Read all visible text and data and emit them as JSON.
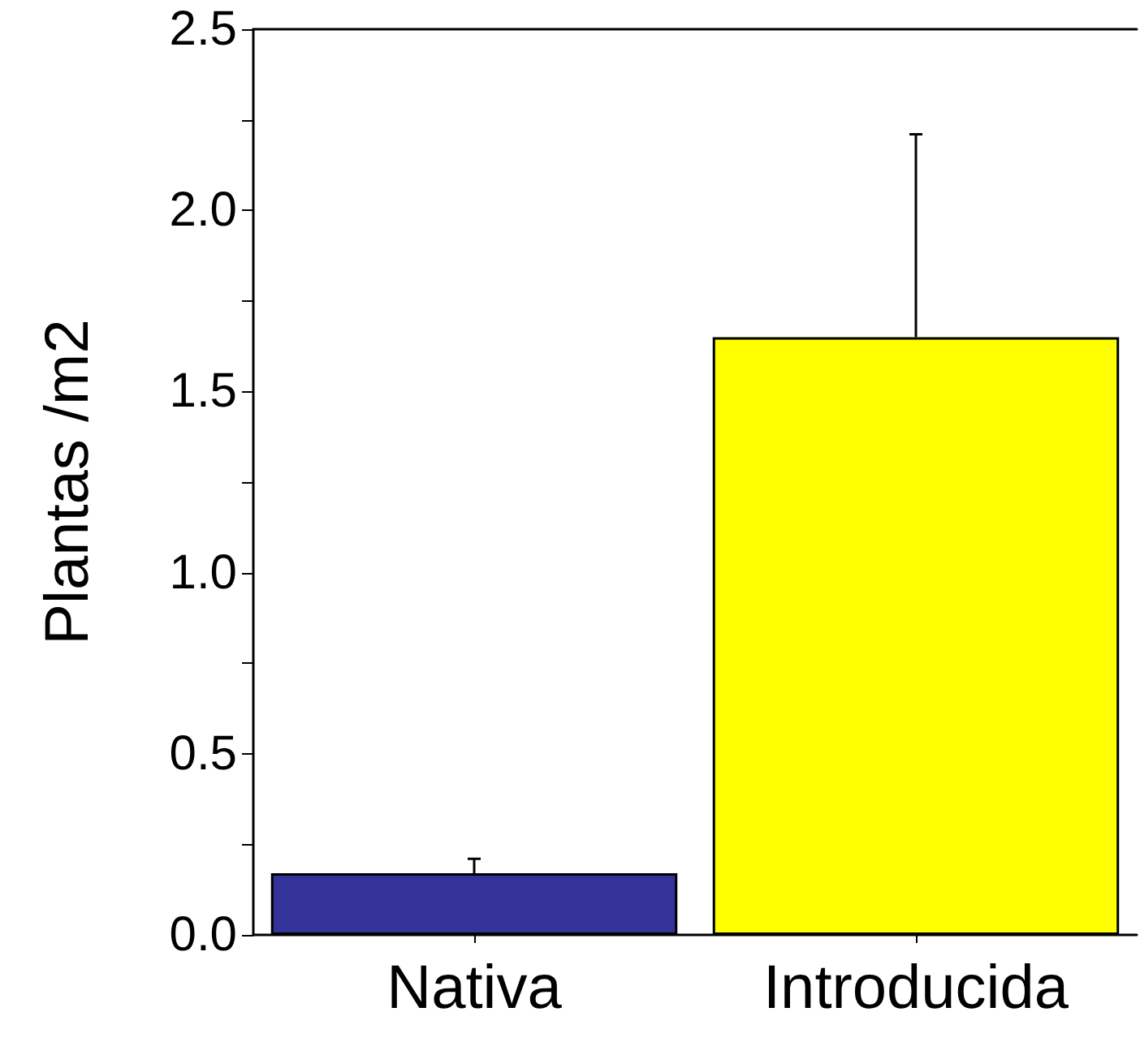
{
  "chart_data": {
    "type": "bar",
    "ylabel": "Plantas /m2",
    "categories": [
      "Nativa",
      "Introducida"
    ],
    "values": [
      0.17,
      1.65
    ],
    "colors": [
      "#333399",
      "#ffff00"
    ],
    "errors": [
      [
        0.17,
        0.21
      ],
      [
        1.65,
        2.21
      ]
    ],
    "ylim": [
      0,
      2.5
    ],
    "yticks": [
      {
        "value": 0,
        "label": "0.0"
      },
      {
        "value": 0.25,
        "label": null
      },
      {
        "value": 0.5,
        "label": "0.5"
      },
      {
        "value": 0.75,
        "label": null
      },
      {
        "value": 1,
        "label": "1.0"
      },
      {
        "value": 1.25,
        "label": null
      },
      {
        "value": 1.5,
        "label": "1.5"
      },
      {
        "value": 1.75,
        "label": null
      },
      {
        "value": 2,
        "label": "2.0"
      },
      {
        "value": 2.25,
        "label": null
      },
      {
        "value": 2.5,
        "label": "2.5"
      }
    ],
    "grid": false
  }
}
